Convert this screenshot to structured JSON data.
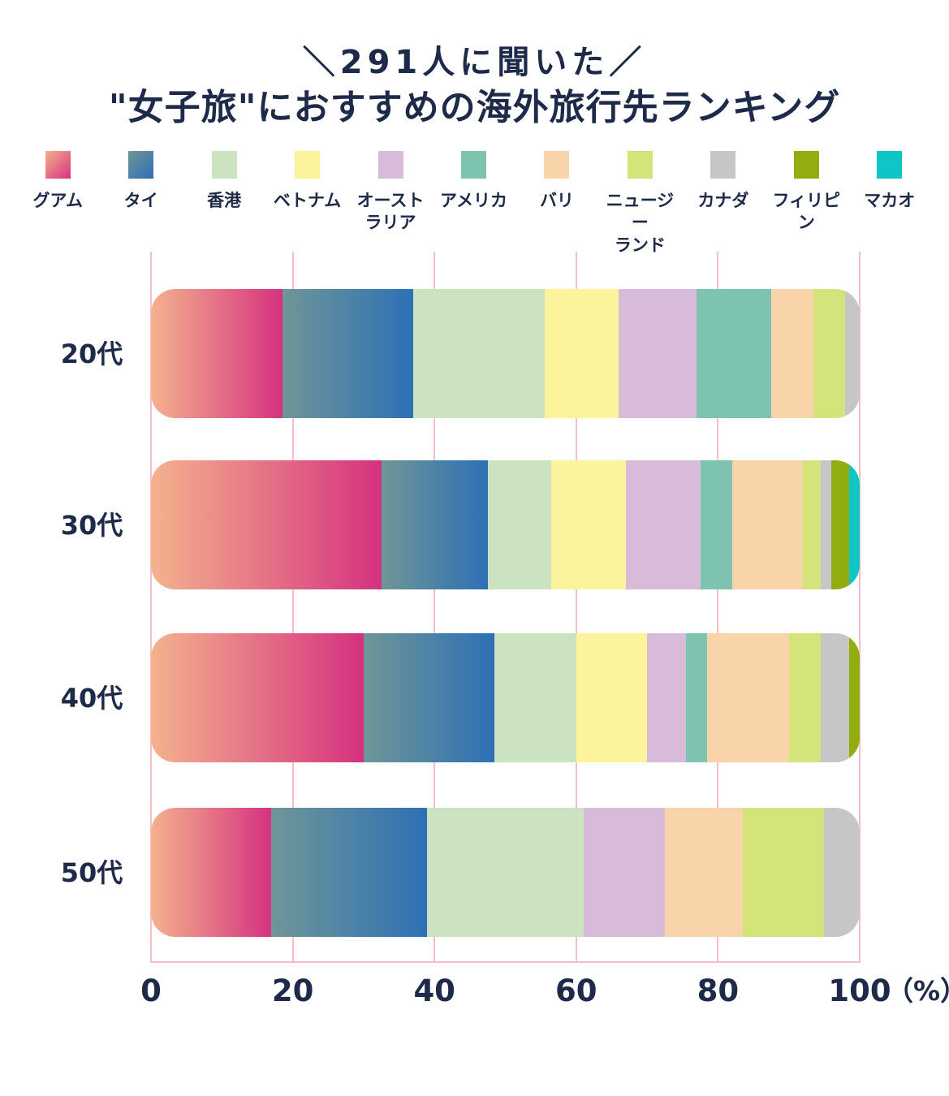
{
  "page": {
    "background": "#ffffff",
    "text_color": "#1e2a49",
    "grid_color": "#f9bdc8"
  },
  "header": {
    "tagline": "＼291人に聞いた／",
    "title": "\"女子旅\"におすすめの海外旅行先ランキング"
  },
  "legend": {
    "items": [
      {
        "label": "グアム",
        "display": "グアム",
        "swatch": {
          "type": "gradient",
          "from": "#f4b28e",
          "to": "#d5327f"
        }
      },
      {
        "label": "タイ",
        "display": "タイ",
        "swatch": {
          "type": "gradient",
          "from": "#6f9697",
          "to": "#2e70b5"
        }
      },
      {
        "label": "香港",
        "display": "香港",
        "swatch": {
          "type": "solid",
          "hex": "#cce3c1"
        }
      },
      {
        "label": "ベトナム",
        "display": "ベトナム",
        "swatch": {
          "type": "solid",
          "hex": "#fcf49d"
        }
      },
      {
        "label": "オーストラリア",
        "display": "オースト\nラリア",
        "swatch": {
          "type": "solid",
          "hex": "#d8bad9"
        }
      },
      {
        "label": "アメリカ",
        "display": "アメリカ",
        "swatch": {
          "type": "solid",
          "hex": "#7ec3b0"
        }
      },
      {
        "label": "バリ",
        "display": "バリ",
        "swatch": {
          "type": "solid",
          "hex": "#f9d3aa"
        }
      },
      {
        "label": "ニュージーランド",
        "display": "ニュージー\nランド",
        "swatch": {
          "type": "solid",
          "hex": "#d4e37a"
        }
      },
      {
        "label": "カナダ",
        "display": "カナダ",
        "swatch": {
          "type": "solid",
          "hex": "#c6c5c7"
        }
      },
      {
        "label": "フィリピン",
        "display": "フィリピン",
        "swatch": {
          "type": "solid",
          "hex": "#92ad10"
        }
      },
      {
        "label": "マカオ",
        "display": "マカオ",
        "swatch": {
          "type": "solid",
          "hex": "#0fc5c5"
        }
      }
    ]
  },
  "chart_data": {
    "type": "bar",
    "stacked": true,
    "orientation": "horizontal",
    "unit": "%",
    "subtitle": "＼291人に聞いた／",
    "title": "\"女子旅\"におすすめの海外旅行先ランキング",
    "sample_size": 291,
    "categories": [
      "20代",
      "30代",
      "40代",
      "50代"
    ],
    "series": [
      {
        "name": "グアム",
        "values": [
          18.5,
          32.5,
          30.0,
          17.0
        ]
      },
      {
        "name": "タイ",
        "values": [
          18.5,
          15.0,
          18.5,
          22.0
        ]
      },
      {
        "name": "香港",
        "values": [
          18.5,
          9.0,
          11.5,
          22.0
        ]
      },
      {
        "name": "ベトナム",
        "values": [
          10.5,
          10.5,
          10.0,
          0.0
        ]
      },
      {
        "name": "オーストラリア",
        "values": [
          11.0,
          10.5,
          5.5,
          11.5
        ]
      },
      {
        "name": "アメリカ",
        "values": [
          10.5,
          4.5,
          3.0,
          0.0
        ]
      },
      {
        "name": "バリ",
        "values": [
          6.0,
          10.0,
          11.5,
          11.0
        ]
      },
      {
        "name": "ニュージーランド",
        "values": [
          4.5,
          2.5,
          4.5,
          11.5
        ]
      },
      {
        "name": "カナダ",
        "values": [
          2.0,
          1.5,
          4.0,
          5.0
        ]
      },
      {
        "name": "フィリピン",
        "values": [
          0.0,
          2.5,
          1.5,
          0.0
        ]
      },
      {
        "name": "マカオ",
        "values": [
          0.0,
          1.5,
          0.0,
          0.0
        ]
      }
    ],
    "x_axis": {
      "ticks": [
        "0",
        "20",
        "40",
        "60",
        "80",
        "100"
      ],
      "unit_label": "（%）",
      "range": [
        0,
        100
      ],
      "grid": true
    },
    "legend_position": "top"
  }
}
